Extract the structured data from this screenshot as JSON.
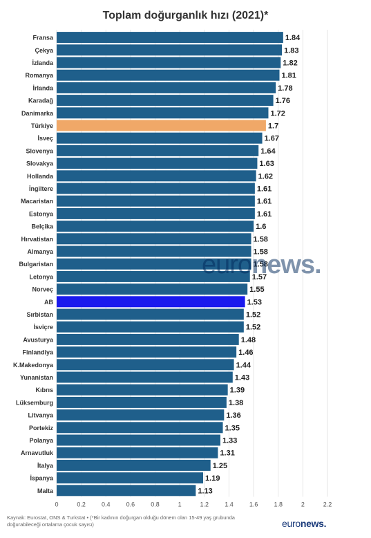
{
  "chart_data": {
    "type": "bar",
    "orientation": "horizontal",
    "title": "Toplam doğurganlık hızı (2021)*",
    "categories": [
      "Fransa",
      "Çekya",
      "İzlanda",
      "Romanya",
      "İrlanda",
      "Karadağ",
      "Danimarka",
      "Türkiye",
      "İsveç",
      "Slovenya",
      "Slovakya",
      "Hollanda",
      "İngiltere",
      "Macaristan",
      "Estonya",
      "Belçika",
      "Hırvatistan",
      "Almanya",
      "Bulgaristan",
      "Letonya",
      "Norveç",
      "AB",
      "Sırbistan",
      "İsviçre",
      "Avusturya",
      "Finlandiya",
      "K.Makedonya",
      "Yunanistan",
      "Kıbrıs",
      "Lüksemburg",
      "Litvanya",
      "Portekiz",
      "Polanya",
      "Arnavutluk",
      "İtalya",
      "İspanya",
      "Malta"
    ],
    "values": [
      1.84,
      1.83,
      1.82,
      1.81,
      1.78,
      1.76,
      1.72,
      1.7,
      1.67,
      1.64,
      1.63,
      1.62,
      1.61,
      1.61,
      1.61,
      1.6,
      1.58,
      1.58,
      1.58,
      1.57,
      1.55,
      1.53,
      1.52,
      1.52,
      1.48,
      1.46,
      1.44,
      1.43,
      1.39,
      1.38,
      1.36,
      1.35,
      1.33,
      1.31,
      1.25,
      1.19,
      1.13
    ],
    "value_labels": [
      "1.84",
      "1.83",
      "1.82",
      "1.81",
      "1.78",
      "1.76",
      "1.72",
      "1.7",
      "1.67",
      "1.64",
      "1.63",
      "1.62",
      "1.61",
      "1.61",
      "1.61",
      "1.6",
      "1.58",
      "1.58",
      "1.58",
      "1.57",
      "1.55",
      "1.53",
      "1.52",
      "1.52",
      "1.48",
      "1.46",
      "1.44",
      "1.43",
      "1.39",
      "1.38",
      "1.36",
      "1.35",
      "1.33",
      "1.31",
      "1.25",
      "1.19",
      "1.13"
    ],
    "highlight": {
      "Türkiye": "#f0a868",
      "AB": "#1a1aee"
    },
    "bar_color": "#1f5f8b",
    "xlim": [
      0,
      2.2
    ],
    "xticks": [
      "0",
      "0.2",
      "0.4",
      "0.6",
      "0.8",
      "1",
      "1.2",
      "1.4",
      "1.6",
      "1.8",
      "2",
      "2.2"
    ],
    "grid": true
  },
  "source": "Kaynak: Eurostat, ONS & Turkstat • (*Bir kadının doğurgan olduğu dönem olan 15-49 yaş grubunda doğurabileceği ortalama çocuk sayısı)",
  "logo": {
    "part1": "euro",
    "part2": "news."
  },
  "watermark": {
    "part1": "euro",
    "part2": "news."
  }
}
